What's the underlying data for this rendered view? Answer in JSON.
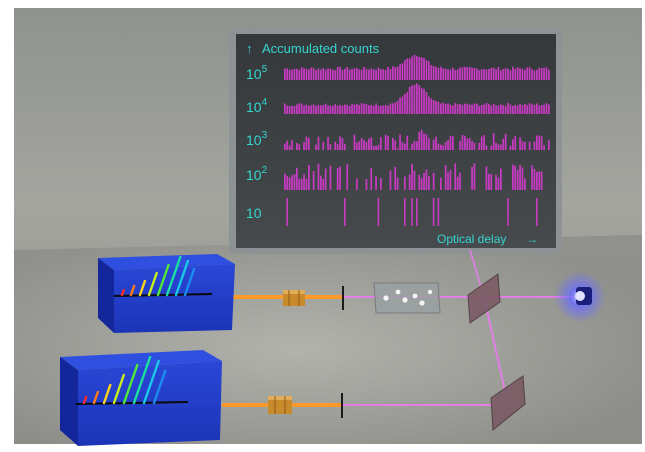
{
  "screen": {
    "title": "Accumulated counts",
    "footer": "Optical delay",
    "colors": {
      "text": "#35d6d0",
      "bars": "#c93bc4",
      "background": "#3f4345",
      "frame": "#8d9294"
    },
    "rows": [
      {
        "base": "10",
        "exponent": "5"
      },
      {
        "base": "10",
        "exponent": "4"
      },
      {
        "base": "10",
        "exponent": "3"
      },
      {
        "base": "10",
        "exponent": "2"
      },
      {
        "base": "10",
        "exponent": ""
      }
    ]
  },
  "apparatus": {
    "laser_color": "#ff9a2a",
    "beam_color": "#e27ee6",
    "source_box_color": "#1b34b7",
    "detector_glow": "#6a6cff"
  }
}
